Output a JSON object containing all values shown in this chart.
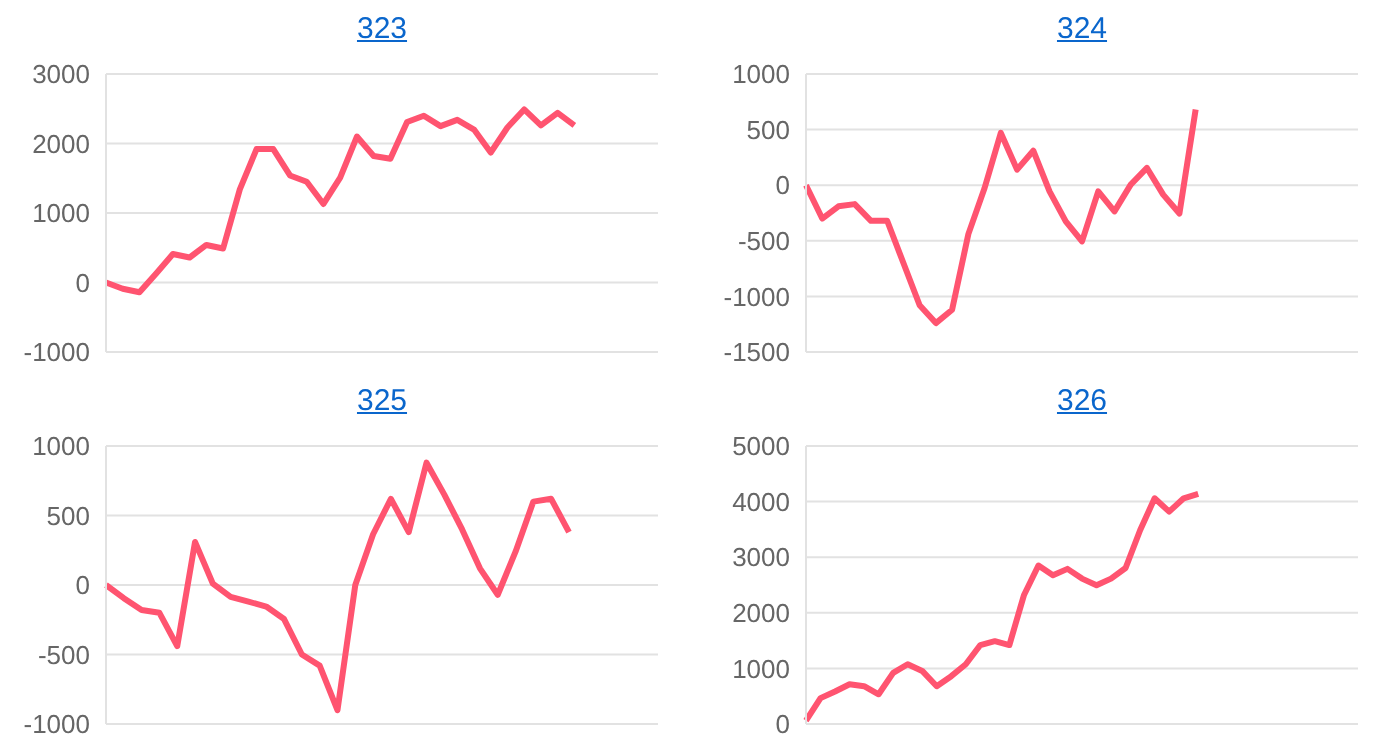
{
  "chart_data": [
    {
      "type": "line",
      "title": "323",
      "categories": [
        null,
        null,
        null,
        null,
        null,
        null,
        null,
        null,
        null,
        null,
        null,
        null,
        null,
        null,
        null,
        null,
        null,
        null,
        null,
        null,
        null,
        null,
        null,
        null,
        null,
        null,
        null,
        null,
        null,
        null,
        null,
        null,
        null,
        null
      ],
      "series": [
        {
          "color": "#ff5470",
          "values": [
            0,
            -90,
            -140,
            130,
            410,
            360,
            540,
            490,
            1340,
            1920,
            1920,
            1540,
            1450,
            1130,
            1510,
            2100,
            1820,
            1780,
            2310,
            2400,
            2250,
            2340,
            2200,
            1870,
            2230,
            2490,
            2260,
            2440,
            2260,
            null,
            null,
            null,
            null,
            null
          ]
        }
      ],
      "ylim": [
        -1000,
        3000
      ],
      "yticks": [
        -1000,
        0,
        1000,
        2000,
        3000
      ],
      "grid": "y",
      "tick_labels": "y",
      "marker": "none",
      "legend": false
    },
    {
      "type": "line",
      "title": "324",
      "categories": [
        null,
        null,
        null,
        null,
        null,
        null,
        null,
        null,
        null,
        null,
        null,
        null,
        null,
        null,
        null,
        null,
        null,
        null,
        null,
        null,
        null,
        null,
        null,
        null,
        null,
        null,
        null,
        null,
        null,
        null,
        null,
        null,
        null,
        null,
        null
      ],
      "series": [
        {
          "color": "#ff5470",
          "values": [
            0,
            -300,
            -190,
            -170,
            -320,
            -320,
            -700,
            -1080,
            -1240,
            -1120,
            -440,
            -25,
            470,
            140,
            310,
            -55,
            -325,
            -505,
            -55,
            -235,
            5,
            155,
            -85,
            -255,
            680,
            null,
            null,
            null,
            null,
            null,
            null,
            null,
            null,
            null,
            null
          ]
        }
      ],
      "ylim": [
        -1500,
        1000
      ],
      "yticks": [
        -1500,
        -1000,
        -500,
        0,
        500,
        1000
      ],
      "grid": "y",
      "tick_labels": "y",
      "marker": "none",
      "legend": false
    },
    {
      "type": "line",
      "title": "325",
      "categories": [
        null,
        null,
        null,
        null,
        null,
        null,
        null,
        null,
        null,
        null,
        null,
        null,
        null,
        null,
        null,
        null,
        null,
        null,
        null,
        null,
        null,
        null,
        null,
        null,
        null,
        null,
        null,
        null,
        null,
        null,
        null,
        null
      ],
      "series": [
        {
          "color": "#ff5470",
          "values": [
            0,
            -95,
            -180,
            -200,
            -440,
            310,
            10,
            -85,
            -120,
            -155,
            -245,
            -500,
            -580,
            -900,
            0,
            365,
            620,
            380,
            880,
            650,
            400,
            120,
            -70,
            240,
            600,
            620,
            380,
            null,
            null,
            null,
            null,
            null
          ]
        }
      ],
      "ylim": [
        -1000,
        1000
      ],
      "yticks": [
        -1000,
        -500,
        0,
        500,
        1000
      ],
      "grid": "y",
      "tick_labels": "y",
      "marker": "none",
      "legend": false
    },
    {
      "type": "line",
      "title": "326",
      "categories": [
        null,
        null,
        null,
        null,
        null,
        null,
        null,
        null,
        null,
        null,
        null,
        null,
        null,
        null,
        null,
        null,
        null,
        null,
        null,
        null,
        null,
        null,
        null,
        null,
        null,
        null,
        null,
        null,
        null,
        null,
        null,
        null,
        null,
        null,
        null,
        null,
        null,
        null,
        null
      ],
      "series": [
        {
          "color": "#ff5470",
          "values": [
            60,
            465,
            585,
            715,
            680,
            535,
            920,
            1075,
            955,
            680,
            860,
            1075,
            1420,
            1490,
            1420,
            2315,
            2850,
            2675,
            2790,
            2615,
            2495,
            2615,
            2805,
            3485,
            4060,
            3820,
            4060,
            4140,
            null,
            null,
            null,
            null,
            null,
            null,
            null,
            null,
            null,
            null,
            null
          ]
        }
      ],
      "ylim": [
        0,
        5000
      ],
      "yticks": [
        0,
        1000,
        2000,
        3000,
        4000,
        5000
      ],
      "grid": "y",
      "tick_labels": "y",
      "marker": "none",
      "legend": false
    }
  ]
}
